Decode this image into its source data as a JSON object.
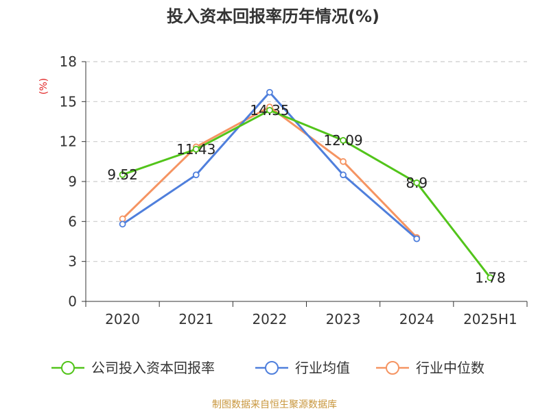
{
  "title": "投入资本回报率历年情况(%)",
  "unit_label": "(%)",
  "source": "制图数据来自恒生聚源数据库",
  "colors": {
    "company": "#52c41a",
    "industry_avg": "#4f7fdc",
    "industry_median": "#f59462",
    "grid": "#cccccc",
    "axis": "#333333",
    "unit": "#e02020",
    "source": "#c8963c"
  },
  "chart_data": {
    "type": "line",
    "title": "投入资本回报率历年情况(%)",
    "ylabel": "(%)",
    "categories": [
      "2020",
      "2021",
      "2022",
      "2023",
      "2024",
      "2025H1"
    ],
    "ylim": [
      0,
      18
    ],
    "yticks": [
      0,
      3,
      6,
      9,
      12,
      15,
      18
    ],
    "grid": true,
    "legend_position": "bottom",
    "series": [
      {
        "name": "公司投入资本回报率",
        "color": "#52c41a",
        "labels": true,
        "values": [
          9.52,
          11.43,
          14.35,
          12.09,
          8.9,
          1.78
        ]
      },
      {
        "name": "行业均值",
        "color": "#4f7fdc",
        "labels": false,
        "values": [
          5.8,
          9.5,
          15.7,
          9.5,
          4.7,
          null
        ]
      },
      {
        "name": "行业中位数",
        "color": "#f59462",
        "labels": false,
        "values": [
          6.2,
          11.6,
          14.6,
          10.5,
          4.8,
          null
        ]
      }
    ],
    "data_labels": [
      "9.52",
      "11.43",
      "14.35",
      "12.09",
      "8.9",
      "1.78"
    ]
  }
}
